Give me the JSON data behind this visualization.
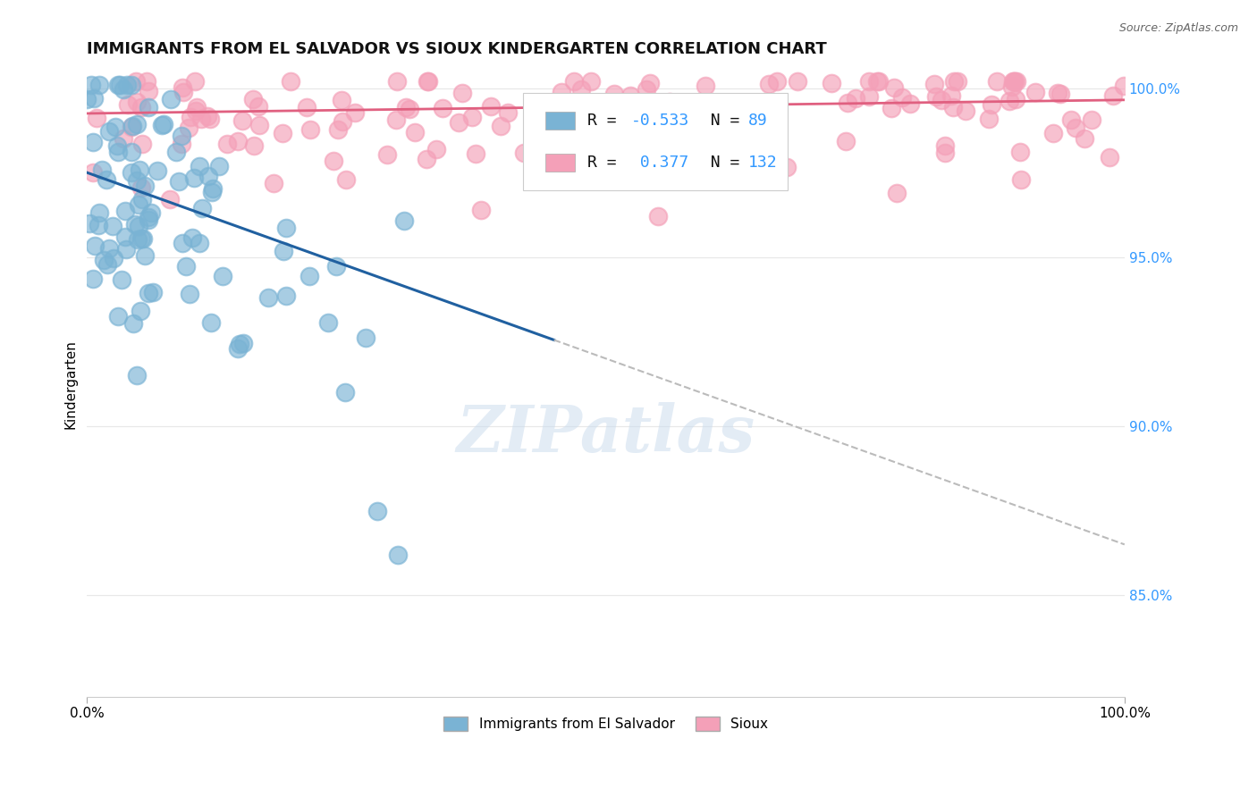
{
  "title": "IMMIGRANTS FROM EL SALVADOR VS SIOUX KINDERGARTEN CORRELATION CHART",
  "source_text": "Source: ZipAtlas.com",
  "ylabel": "Kindergarten",
  "legend_labels": [
    "Immigrants from El Salvador",
    "Sioux"
  ],
  "R_blue": -0.533,
  "N_blue": 89,
  "R_pink": 0.377,
  "N_pink": 132,
  "blue_color": "#7ab3d4",
  "pink_color": "#f4a0b8",
  "blue_line_color": "#2060a0",
  "pink_line_color": "#e06080",
  "dashed_line_color": "#bbbbbb",
  "background_color": "#ffffff",
  "grid_color": "#e8e8e8",
  "xlim": [
    0.0,
    1.0
  ],
  "ylim": [
    0.82,
    1.005
  ],
  "right_yticks": [
    0.85,
    0.9,
    0.95,
    1.0
  ],
  "right_ytick_labels": [
    "85.0%",
    "90.0%",
    "95.0%",
    "100.0%"
  ],
  "xtick_labels": [
    "0.0%",
    "100.0%"
  ],
  "watermark_text": "ZIPatlas",
  "title_fontsize": 13,
  "axis_label_fontsize": 11,
  "tick_fontsize": 11,
  "legend_fontsize": 13
}
